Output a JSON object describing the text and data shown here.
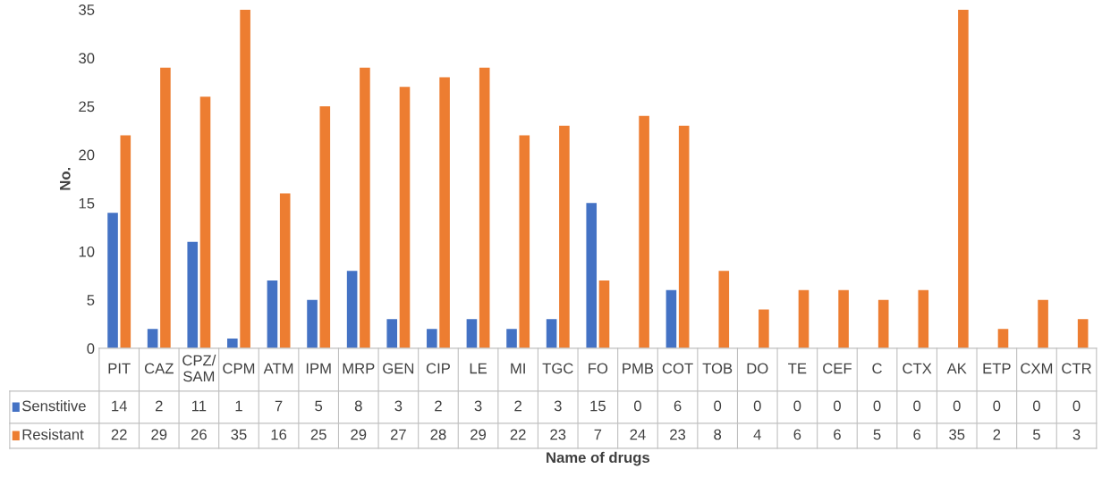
{
  "chart_data": {
    "type": "bar",
    "xlabel": "Name of drugs",
    "ylabel": "No.",
    "categories": [
      "PIT",
      "CAZ",
      "CPZ/\nSAM",
      "CPM",
      "ATM",
      "IPM",
      "MRP",
      "GEN",
      "CIP",
      "LE",
      "MI",
      "TGC",
      "FO",
      "PMB",
      "COT",
      "TOB",
      "DO",
      "TE",
      "CEF",
      "C",
      "CTX",
      "AK",
      "ETP",
      "CXM",
      "CTR"
    ],
    "series": [
      {
        "name": "Senstitive",
        "color": "#4472c4",
        "values": [
          14,
          2,
          11,
          1,
          7,
          5,
          8,
          3,
          2,
          3,
          2,
          3,
          15,
          0,
          6,
          0,
          0,
          0,
          0,
          0,
          0,
          0,
          0,
          0,
          0
        ]
      },
      {
        "name": "Resistant",
        "color": "#ed7d31",
        "values": [
          22,
          29,
          26,
          35,
          16,
          25,
          29,
          27,
          28,
          29,
          22,
          23,
          7,
          24,
          23,
          8,
          4,
          6,
          6,
          5,
          6,
          35,
          2,
          5,
          3
        ]
      }
    ],
    "ylim": [
      0,
      35
    ],
    "yticks": [
      0,
      5,
      10,
      15,
      20,
      25,
      30,
      35
    ],
    "grid": false,
    "legend": "bottom",
    "data_labels": true
  }
}
